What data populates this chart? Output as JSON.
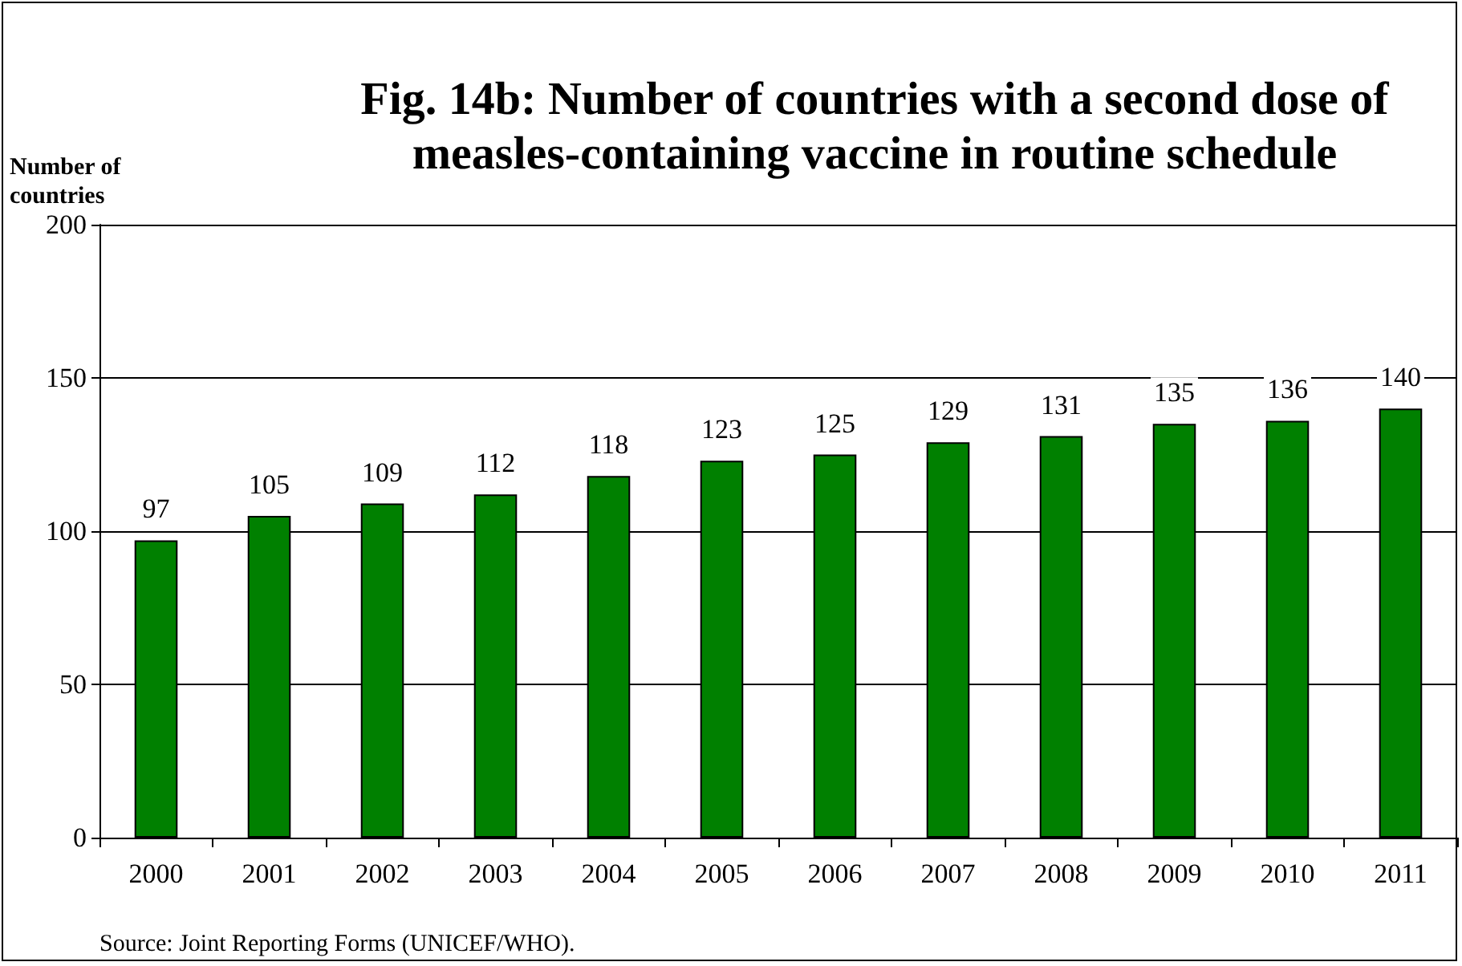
{
  "chart_data": {
    "type": "bar",
    "title": "Fig. 14b: Number of countries with a second dose of measles-containing vaccine in routine schedule",
    "ylabel": "Number of countries",
    "categories": [
      "2000",
      "2001",
      "2002",
      "2003",
      "2004",
      "2005",
      "2006",
      "2007",
      "2008",
      "2009",
      "2010",
      "2011"
    ],
    "values": [
      97,
      105,
      109,
      112,
      118,
      123,
      125,
      129,
      131,
      135,
      136,
      140
    ],
    "color": "#008000",
    "ylim": [
      0,
      200
    ],
    "yticks": [
      0,
      50,
      100,
      150,
      200
    ],
    "grid": "y",
    "data_labels": true,
    "annotations": [
      "Source: Joint Reporting Forms (UNICEF/WHO)."
    ]
  }
}
